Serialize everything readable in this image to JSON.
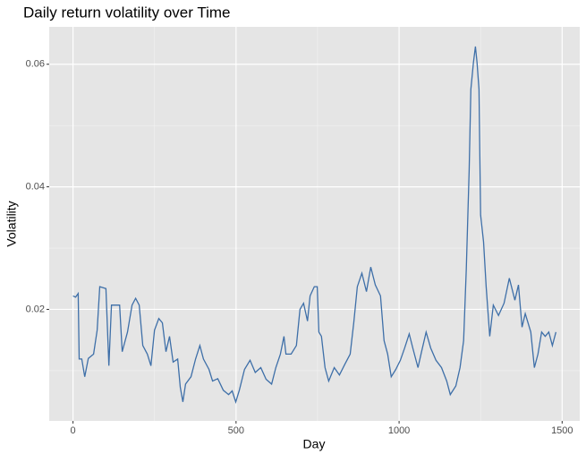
{
  "chart_data": {
    "type": "line",
    "title": "Daily return volatility over Time",
    "x_label": "Day",
    "y_label": "Volatility",
    "x": [
      0,
      8,
      16,
      19,
      27,
      36,
      47,
      63,
      74,
      82,
      101,
      110,
      118,
      143,
      151,
      167,
      181,
      192,
      203,
      214,
      228,
      239,
      250,
      263,
      274,
      285,
      296,
      307,
      321,
      329,
      337,
      345,
      362,
      376,
      389,
      400,
      417,
      428,
      444,
      461,
      477,
      488,
      499,
      510,
      526,
      543,
      559,
      576,
      592,
      609,
      622,
      636,
      647,
      653,
      669,
      685,
      696,
      707,
      719,
      727,
      740,
      749,
      754,
      762,
      773,
      784,
      801,
      817,
      834,
      850,
      861,
      872,
      886,
      900,
      913,
      927,
      943,
      954,
      965,
      976,
      990,
      1004,
      1017,
      1031,
      1042,
      1058,
      1069,
      1083,
      1097,
      1113,
      1130,
      1146,
      1157,
      1174,
      1187,
      1198,
      1206,
      1215,
      1220,
      1228,
      1234,
      1239,
      1245,
      1250,
      1259,
      1267,
      1278,
      1289,
      1305,
      1322,
      1338,
      1355,
      1366,
      1377,
      1387,
      1404,
      1415,
      1426,
      1437,
      1448,
      1459,
      1470,
      1481
    ],
    "series": [
      {
        "name": "Volatility",
        "color": "#3e6fa8",
        "values": [
          0.0222,
          0.022,
          0.0226,
          0.0119,
          0.0119,
          0.009,
          0.012,
          0.0127,
          0.0166,
          0.0237,
          0.0234,
          0.0108,
          0.0207,
          0.0207,
          0.0131,
          0.0163,
          0.0207,
          0.0218,
          0.0207,
          0.0141,
          0.0127,
          0.0108,
          0.0166,
          0.0185,
          0.0178,
          0.0131,
          0.0156,
          0.0114,
          0.0119,
          0.0073,
          0.0049,
          0.0078,
          0.009,
          0.0119,
          0.0141,
          0.0119,
          0.0102,
          0.0083,
          0.0087,
          0.0068,
          0.0061,
          0.0067,
          0.0049,
          0.0068,
          0.0102,
          0.0117,
          0.0097,
          0.0105,
          0.0086,
          0.0078,
          0.0105,
          0.0127,
          0.0156,
          0.0127,
          0.0127,
          0.0141,
          0.02,
          0.021,
          0.0181,
          0.0222,
          0.0237,
          0.0237,
          0.0163,
          0.0156,
          0.0105,
          0.0083,
          0.0105,
          0.0093,
          0.0111,
          0.0127,
          0.0178,
          0.0237,
          0.0259,
          0.0229,
          0.0269,
          0.024,
          0.0222,
          0.0149,
          0.0127,
          0.009,
          0.0102,
          0.0117,
          0.0137,
          0.016,
          0.0137,
          0.0105,
          0.0131,
          0.0163,
          0.0137,
          0.0117,
          0.0105,
          0.0083,
          0.0061,
          0.0075,
          0.0105,
          0.0149,
          0.0266,
          0.0427,
          0.0559,
          0.0603,
          0.0629,
          0.0603,
          0.0559,
          0.0354,
          0.031,
          0.0237,
          0.0156,
          0.0207,
          0.019,
          0.021,
          0.0251,
          0.0215,
          0.024,
          0.0171,
          0.0193,
          0.0163,
          0.0105,
          0.0127,
          0.0163,
          0.0156,
          0.0163,
          0.0141,
          0.0163
        ]
      }
    ],
    "xlim": [
      -73,
      1554
    ],
    "xticks": [
      0,
      500,
      1000,
      1500
    ],
    "xminor": [
      250,
      750,
      1250
    ],
    "ylim": [
      0.0018,
      0.0661
    ],
    "yticks": [
      0.02,
      0.04,
      0.06
    ],
    "yminor": [
      0.01,
      0.03,
      0.05
    ],
    "grid": true
  }
}
